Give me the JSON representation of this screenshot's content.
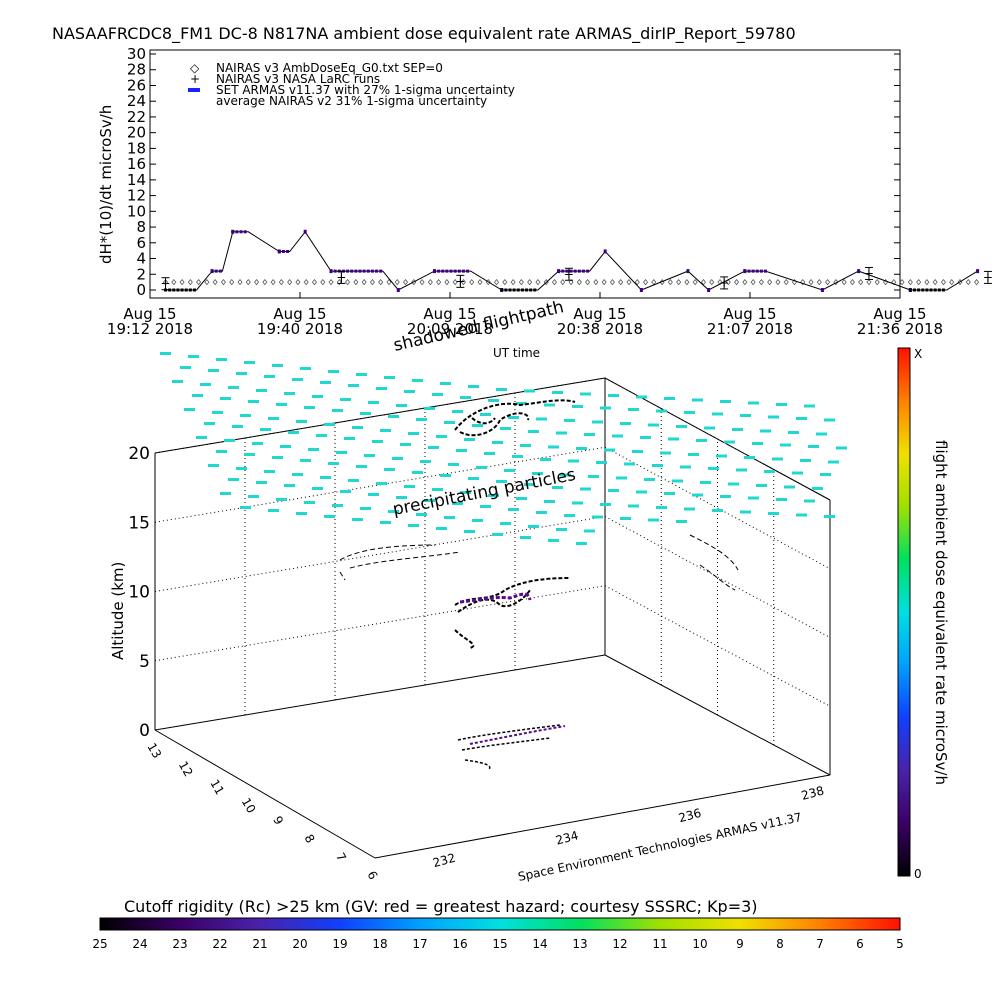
{
  "chart_data": [
    {
      "type": "line",
      "title": "NASAAFRCDC8_FM1 DC-8   N817NA ambient dose equivalent rate ARMAS_dirIP_Report_59780",
      "xlabel": "UT time",
      "ylabel": "dH*(10)/dt microSv/h",
      "ylim": [
        0,
        30
      ],
      "y_ticks": [
        "0",
        "2",
        "4",
        "6",
        "8",
        "10",
        "12",
        "14",
        "16",
        "18",
        "20",
        "22",
        "24",
        "26",
        "28",
        "30"
      ],
      "x_ticks": [
        {
          "date": "Aug 15",
          "time": "19:12 2018"
        },
        {
          "date": "Aug 15",
          "time": "19:40 2018"
        },
        {
          "date": "Aug 15",
          "time": "20:09 2018"
        },
        {
          "date": "Aug 15",
          "time": "20:38 2018"
        },
        {
          "date": "Aug 15",
          "time": "21:07 2018"
        },
        {
          "date": "Aug 15",
          "time": "21:36 2018"
        }
      ],
      "legend": [
        "NAIRAS v3 AmbDoseEq_G0.txt SEP=0",
        "NAIRAS v3 NASA LaRC runs",
        "SET ARMAS v11.37 with 27% 1-sigma uncertainty",
        "average NAIRAS v2 31% 1-sigma uncertainty"
      ],
      "legend_position": "top-left",
      "grid": false,
      "series": [
        {
          "name": "SET ARMAS v11.37 with 27% 1-sigma uncertainty",
          "color": "#3a0080",
          "x_minutes_after_1912": [
            3,
            9,
            12,
            14,
            16,
            19,
            25,
            27,
            30,
            35,
            45,
            48,
            55,
            62,
            68,
            75,
            79,
            85,
            88,
            95,
            104,
            108,
            115,
            119,
            130,
            137,
            147,
            154,
            160
          ],
          "y": [
            0,
            0,
            2.4,
            2.4,
            7.4,
            7.4,
            4.9,
            4.9,
            7.4,
            2.4,
            2.4,
            0,
            2.4,
            2.4,
            0,
            0,
            2.4,
            2.4,
            4.9,
            0,
            2.4,
            0,
            2.4,
            2.4,
            0,
            2.4,
            0,
            0,
            2.4
          ]
        },
        {
          "name": "NAIRAS v3 AmbDoseEq_G0.txt SEP=0",
          "color": "#555555",
          "x_range_minutes_after_1912": [
            3,
            160
          ],
          "y_constant": 1.0
        },
        {
          "name": "NAIRAS v3 NASA LaRC runs",
          "color": "#000000",
          "points_minutes_after_1912": [
            [
              3,
              0.8
            ],
            [
              37,
              1.6
            ],
            [
              60,
              1.1
            ],
            [
              81,
              2.0
            ],
            [
              111,
              0.9
            ],
            [
              139,
              2.1
            ],
            [
              162,
              1.6
            ]
          ]
        }
      ]
    },
    {
      "type": "scatter",
      "title": "",
      "zlabel": "Altitude (km)",
      "z_ticks": [
        "0",
        "5",
        "10",
        "15",
        "20"
      ],
      "x_ticks": [
        "232",
        "234",
        "236",
        "238"
      ],
      "y_ticks": [
        "6",
        "7",
        "8",
        "9",
        "10",
        "11",
        "12",
        "13"
      ],
      "annotations": [
        "shadowed flightpath",
        "precipitating particles"
      ],
      "credit": "Space Environment Technologies ARMAS v11.37",
      "colors": {
        "cloud": "#20d8d0",
        "track": "#000000",
        "track_hi": "#5a0a8a"
      }
    },
    {
      "type": "heatmap",
      "title": "Cutoff rigidity (Rc) >25 km (GV: red = greatest hazard; courtesy SSSRC; Kp=3)",
      "tick_labels": [
        "25",
        "24",
        "23",
        "22",
        "21",
        "20",
        "19",
        "18",
        "17",
        "16",
        "15",
        "14",
        "13",
        "12",
        "11",
        "10",
        "9",
        "8",
        "7",
        "6",
        "5"
      ],
      "colormap": [
        "#000000",
        "#3a0066",
        "#4a22aa",
        "#1040ff",
        "#00a0ff",
        "#00e0e0",
        "#00e060",
        "#a0e000",
        "#f0e000",
        "#ff8000",
        "#ff1000"
      ]
    },
    {
      "type": "heatmap",
      "title": "flight ambient dose equivalent rate microSv/h",
      "top_label": "X",
      "bottom_label": "0",
      "colormap": [
        "#000000",
        "#3a0066",
        "#4a22aa",
        "#1040ff",
        "#00a0ff",
        "#00e0e0",
        "#00e060",
        "#a0e000",
        "#f0e000",
        "#ff8000",
        "#ff1000"
      ]
    }
  ]
}
